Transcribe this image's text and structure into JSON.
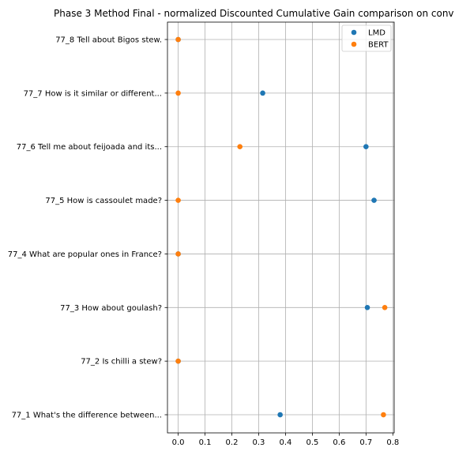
{
  "chart_data": {
    "type": "scatter",
    "title": "Phase 3 Method Final - normalized Discounted Cumulative Gain comparison on conv",
    "xlabel": "",
    "ylabel": "",
    "xlim": [
      -0.04,
      0.805
    ],
    "x_ticks": [
      "0.0",
      "0.1",
      "0.2",
      "0.3",
      "0.4",
      "0.5",
      "0.6",
      "0.7",
      "0.8"
    ],
    "categories": [
      "77_8 Tell about Bigos stew.",
      "77_7 How is it similar or different...",
      "77_6 Tell me about feijoada and its...",
      "77_5 How is cassoulet made?",
      "77_4 What are popular ones in France?",
      "77_3 How about goulash?",
      "77_2 Is chilli a stew?",
      "77_1 What's the difference between..."
    ],
    "series": [
      {
        "name": "LMD",
        "color": "#1f77b4",
        "values": [
          0.0,
          0.315,
          0.7,
          0.73,
          0.0,
          0.705,
          0.0,
          0.38
        ]
      },
      {
        "name": "BERT",
        "color": "#ff7f0e",
        "values": [
          0.0,
          0.0,
          0.23,
          0.0,
          0.0,
          0.77,
          0.0,
          0.765
        ]
      }
    ],
    "grid": true,
    "legend_position": "top-right"
  }
}
